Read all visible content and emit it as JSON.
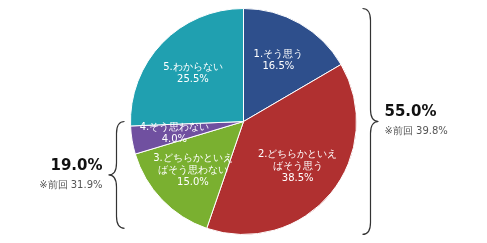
{
  "chart_data": {
    "type": "pie",
    "categories": [
      "1.そう思う",
      "2.どちらかといえ\nばそう思う",
      "3.どちらかといえ\nばそう思わない",
      "4.そう思わない",
      "5.わからない"
    ],
    "values": [
      16.5,
      38.5,
      15.0,
      4.0,
      25.5
    ],
    "value_labels": [
      "16.5%",
      "38.5%",
      "15.0%",
      "4.0%",
      "25.5%"
    ],
    "colors": [
      "#2e4f8c",
      "#b03030",
      "#7ab030",
      "#7050a0",
      "#20a0b0"
    ],
    "data_labels": true,
    "annotations": [
      {
        "text": "55.0%",
        "sub": "※前回 39.8%"
      },
      {
        "text": "19.0%",
        "sub": "※前回 31.9%"
      }
    ]
  }
}
